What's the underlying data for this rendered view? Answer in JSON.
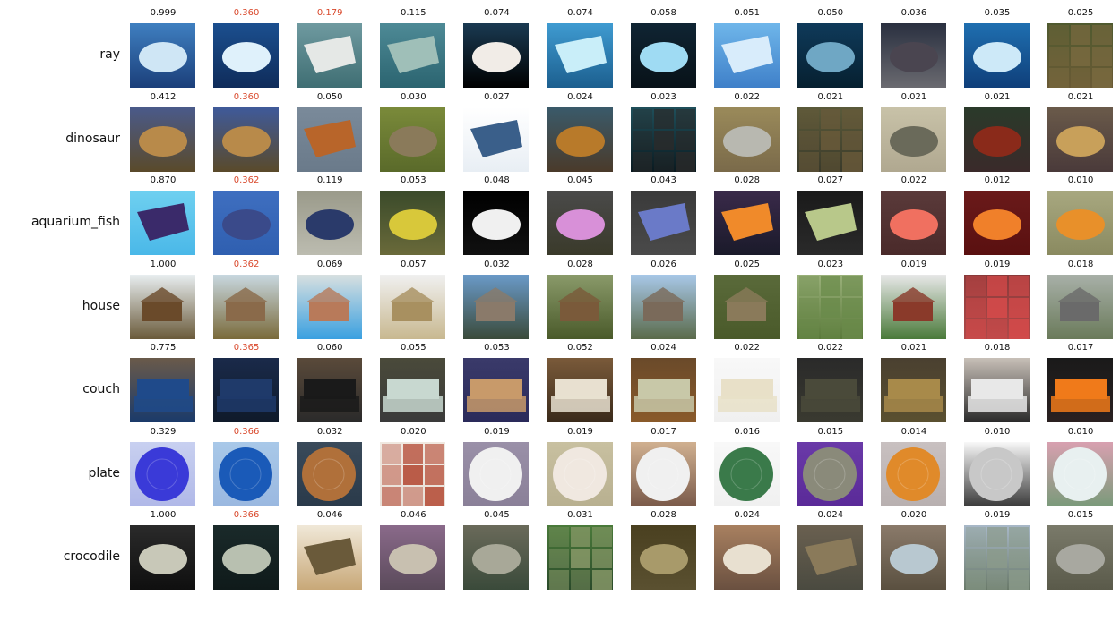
{
  "rows": [
    {
      "label": "ray",
      "scores": [
        "0.999",
        "0.360",
        "0.179",
        "0.115",
        "0.074",
        "0.074",
        "0.058",
        "0.051",
        "0.050",
        "0.036",
        "0.035",
        "0.025"
      ],
      "highlighted": [
        1,
        2
      ],
      "images": [
        {
          "top": "#3f7fc0",
          "bottom": "#1b3f7a",
          "subject": "#cfe6f5",
          "shape": "blob"
        },
        {
          "top": "#1b4f8f",
          "bottom": "#0f2c5a",
          "subject": "#dff1fb",
          "shape": "blob"
        },
        {
          "top": "#6f9aa0",
          "bottom": "#3f6e73",
          "subject": "#e5e8e6",
          "shape": "kite"
        },
        {
          "top": "#4e8a96",
          "bottom": "#2b6470",
          "subject": "#9fbfb8",
          "shape": "kite"
        },
        {
          "top": "#1a3a52",
          "bottom": "#000000",
          "subject": "#f1ece7",
          "shape": "blob"
        },
        {
          "top": "#3f9bd1",
          "bottom": "#1c5f8f",
          "subject": "#c9eef9",
          "shape": "kite"
        },
        {
          "top": "#0f2433",
          "bottom": "#081218",
          "subject": "#9fdbf3",
          "shape": "blob"
        },
        {
          "top": "#6fb6ea",
          "bottom": "#3f80c9",
          "subject": "#d8ecfb",
          "shape": "kite"
        },
        {
          "top": "#0f3a5a",
          "bottom": "#062030",
          "subject": "#6fa7c4",
          "shape": "blob"
        },
        {
          "top": "#2a3040",
          "bottom": "#6a6a70",
          "subject": "#4a4550",
          "shape": "blob"
        },
        {
          "top": "#1f6fb0",
          "bottom": "#0f3f7a",
          "subject": "#cde9f8",
          "shape": "blob"
        },
        {
          "top": "#4f5a2f",
          "bottom": "#6a5a35",
          "subject": "#7a6a40",
          "shape": "noise"
        }
      ]
    },
    {
      "label": "dinosaur",
      "scores": [
        "0.412",
        "0.360",
        "0.050",
        "0.030",
        "0.027",
        "0.024",
        "0.023",
        "0.022",
        "0.021",
        "0.021",
        "0.021",
        "0.021"
      ],
      "highlighted": [
        1
      ],
      "images": [
        {
          "top": "#4a5a8a",
          "bottom": "#5a4a2a",
          "subject": "#b88a4a",
          "shape": "blob"
        },
        {
          "top": "#3f5a9a",
          "bottom": "#5a4a2a",
          "subject": "#b88a4a",
          "shape": "blob"
        },
        {
          "top": "#7a8a9a",
          "bottom": "#6a7a8a",
          "subject": "#b8652a",
          "shape": "kite"
        },
        {
          "top": "#7a8a3a",
          "bottom": "#5a6a2a",
          "subject": "#8a7a5a",
          "shape": "blob"
        },
        {
          "top": "#ffffff",
          "bottom": "#e8eef4",
          "subject": "#3a5f8a",
          "shape": "kite"
        },
        {
          "top": "#3a5a6a",
          "bottom": "#4a3a2a",
          "subject": "#b87a2a",
          "shape": "blob"
        },
        {
          "top": "#1f4f5a",
          "bottom": "#0a1a20",
          "subject": "#2a2a2a",
          "shape": "noise"
        },
        {
          "top": "#9a8a5a",
          "bottom": "#7a6a4a",
          "subject": "#b8b8b0",
          "shape": "blob"
        },
        {
          "top": "#5a5a3a",
          "bottom": "#3a3a2a",
          "subject": "#6a5a3a",
          "shape": "noise"
        },
        {
          "top": "#c8c2a8",
          "bottom": "#b0a890",
          "subject": "#6a6a5a",
          "shape": "blob"
        },
        {
          "top": "#2a3a2a",
          "bottom": "#3a2a2a",
          "subject": "#8a2a1a",
          "shape": "blob"
        },
        {
          "top": "#6a5a4a",
          "bottom": "#4a3a3a",
          "subject": "#c8a05a",
          "shape": "blob"
        }
      ]
    },
    {
      "label": "aquarium_fish",
      "scores": [
        "0.870",
        "0.362",
        "0.119",
        "0.053",
        "0.048",
        "0.045",
        "0.043",
        "0.028",
        "0.027",
        "0.022",
        "0.012",
        "0.010"
      ],
      "highlighted": [
        1
      ],
      "images": [
        {
          "top": "#6fd0f0",
          "bottom": "#4ab8e8",
          "subject": "#3a2a6a",
          "shape": "kite"
        },
        {
          "top": "#3f6fc0",
          "bottom": "#2f5fb0",
          "subject": "#3a4a8a",
          "shape": "blob"
        },
        {
          "top": "#9a9a8a",
          "bottom": "#bcbcb0",
          "subject": "#2a3a6a",
          "shape": "blob"
        },
        {
          "top": "#3a4a2a",
          "bottom": "#6a6a3a",
          "subject": "#d8c83a",
          "shape": "blob"
        },
        {
          "top": "#000000",
          "bottom": "#101010",
          "subject": "#f0f0f0",
          "shape": "blob"
        },
        {
          "top": "#4a4a4a",
          "bottom": "#3a3a2a",
          "subject": "#d890d8",
          "shape": "blob"
        },
        {
          "top": "#3a3a3a",
          "bottom": "#4a4a4a",
          "subject": "#6a7ac8",
          "shape": "kite"
        },
        {
          "top": "#3a2a4a",
          "bottom": "#1a1a2a",
          "subject": "#f08a2a",
          "shape": "kite"
        },
        {
          "top": "#1a1a1a",
          "bottom": "#2a2a2a",
          "subject": "#b8c88a",
          "shape": "kite"
        },
        {
          "top": "#5a3a3a",
          "bottom": "#4a2a2a",
          "subject": "#f07060",
          "shape": "blob"
        },
        {
          "top": "#6a1a1a",
          "bottom": "#5a1010",
          "subject": "#f0802a",
          "shape": "blob"
        },
        {
          "top": "#a8a880",
          "bottom": "#8a8a60",
          "subject": "#e8902a",
          "shape": "blob"
        }
      ]
    },
    {
      "label": "house",
      "scores": [
        "1.000",
        "0.362",
        "0.069",
        "0.057",
        "0.032",
        "0.028",
        "0.026",
        "0.025",
        "0.023",
        "0.019",
        "0.019",
        "0.018"
      ],
      "highlighted": [
        1
      ],
      "images": [
        {
          "top": "#e8eef0",
          "bottom": "#6a5a3a",
          "subject": "#6a4a2a",
          "shape": "house"
        },
        {
          "top": "#c8d8e0",
          "bottom": "#7a6a3a",
          "subject": "#8a6a4a",
          "shape": "house"
        },
        {
          "top": "#d8e0e0",
          "bottom": "#3aa0e0",
          "subject": "#b87a5a",
          "shape": "house"
        },
        {
          "top": "#f0f0f0",
          "bottom": "#c8b890",
          "subject": "#a89060",
          "shape": "house"
        },
        {
          "top": "#6a9ac8",
          "bottom": "#3a4a3a",
          "subject": "#8a7a6a",
          "shape": "house"
        },
        {
          "top": "#8a9a6a",
          "bottom": "#4a5a2a",
          "subject": "#7a5a3a",
          "shape": "house"
        },
        {
          "top": "#a8c8e8",
          "bottom": "#5a6a4a",
          "subject": "#7a6a5a",
          "shape": "house"
        },
        {
          "top": "#5a6a3a",
          "bottom": "#4a5a2a",
          "subject": "#8a7a5a",
          "shape": "house"
        },
        {
          "top": "#9ab07a",
          "bottom": "#5a7a3a",
          "subject": "#6a8a4a",
          "shape": "noise"
        },
        {
          "top": "#e8e8e8",
          "bottom": "#4a7a3a",
          "subject": "#8a3a2a",
          "shape": "house"
        },
        {
          "top": "#8a3a3a",
          "bottom": "#b04a4a",
          "subject": "#d84a4a",
          "shape": "noise"
        },
        {
          "top": "#a8b0a8",
          "bottom": "#6a7a5a",
          "subject": "#6a6a6a",
          "shape": "house"
        }
      ]
    },
    {
      "label": "couch",
      "scores": [
        "0.775",
        "0.365",
        "0.060",
        "0.055",
        "0.053",
        "0.052",
        "0.024",
        "0.022",
        "0.022",
        "0.021",
        "0.018",
        "0.017"
      ],
      "highlighted": [
        1
      ],
      "images": [
        {
          "top": "#6a5a4a",
          "bottom": "#1a3a6a",
          "subject": "#1f4a8a",
          "shape": "couch"
        },
        {
          "top": "#1a2a4a",
          "bottom": "#0f1a2a",
          "subject": "#1f3a6a",
          "shape": "couch"
        },
        {
          "top": "#5a4a3a",
          "bottom": "#2a2a2a",
          "subject": "#1a1a1a",
          "shape": "couch"
        },
        {
          "top": "#4a4a3a",
          "bottom": "#3a3a3a",
          "subject": "#c8d8d0",
          "shape": "couch"
        },
        {
          "top": "#3a3a6a",
          "bottom": "#2a2a5a",
          "subject": "#c89a6a",
          "shape": "couch"
        },
        {
          "top": "#7a5a3a",
          "bottom": "#3a2a1a",
          "subject": "#e8e0d0",
          "shape": "couch"
        },
        {
          "top": "#6a4a2a",
          "bottom": "#8a5a2a",
          "subject": "#c8c8a8",
          "shape": "couch"
        },
        {
          "top": "#f8f8f8",
          "bottom": "#f0f0f0",
          "subject": "#e8e0c8",
          "shape": "couch"
        },
        {
          "top": "#2a2a2a",
          "bottom": "#3a3a30",
          "subject": "#4a4a3a",
          "shape": "couch"
        },
        {
          "top": "#4a4030",
          "bottom": "#5a5030",
          "subject": "#a88a4a",
          "shape": "couch"
        },
        {
          "top": "#c8c0b8",
          "bottom": "#2a2a2a",
          "subject": "#e8e8e8",
          "shape": "couch"
        },
        {
          "top": "#1a1a1a",
          "bottom": "#2a2020",
          "subject": "#f07a1a",
          "shape": "couch"
        }
      ]
    },
    {
      "label": "plate",
      "scores": [
        "0.329",
        "0.366",
        "0.032",
        "0.020",
        "0.019",
        "0.019",
        "0.017",
        "0.016",
        "0.015",
        "0.014",
        "0.010",
        "0.010"
      ],
      "highlighted": [
        1
      ],
      "images": [
        {
          "top": "#c8d0f0",
          "bottom": "#b0b8e8",
          "subject": "#3a3ad8",
          "shape": "plate"
        },
        {
          "top": "#a8c8e8",
          "bottom": "#9ab8e0",
          "subject": "#1a5ab8",
          "shape": "plate"
        },
        {
          "top": "#3a4a5a",
          "bottom": "#2a3a4a",
          "subject": "#b0703a",
          "shape": "plate"
        },
        {
          "top": "#f0e8e0",
          "bottom": "#e8e0d8",
          "subject": "#b0402a",
          "shape": "noise"
        },
        {
          "top": "#9a90a8",
          "bottom": "#8a8098",
          "subject": "#f0f0f0",
          "shape": "plate"
        },
        {
          "top": "#c8c0a0",
          "bottom": "#b8b090",
          "subject": "#f0e8e0",
          "shape": "plate"
        },
        {
          "top": "#d0b090",
          "bottom": "#7a5a4a",
          "subject": "#f0f0f0",
          "shape": "plate"
        },
        {
          "top": "#f8f8f8",
          "bottom": "#f0f0f0",
          "subject": "#3a7a4a",
          "shape": "plate"
        },
        {
          "top": "#6a3aa8",
          "bottom": "#5a2a98",
          "subject": "#8a8a7a",
          "shape": "plate"
        },
        {
          "top": "#c8c0c0",
          "bottom": "#b8b0b0",
          "subject": "#e08a2a",
          "shape": "plate"
        },
        {
          "top": "#f8f8f8",
          "bottom": "#3a3a3a",
          "subject": "#c8c8c8",
          "shape": "plate"
        },
        {
          "top": "#d8a0b0",
          "bottom": "#7a9a7a",
          "subject": "#e8f0f0",
          "shape": "plate"
        }
      ]
    },
    {
      "label": "crocodile",
      "scores": [
        "1.000",
        "0.366",
        "0.046",
        "0.046",
        "0.045",
        "0.031",
        "0.028",
        "0.024",
        "0.024",
        "0.020",
        "0.019",
        "0.015"
      ],
      "highlighted": [
        1
      ],
      "images": [
        {
          "top": "#2a2a2a",
          "bottom": "#0f0f0f",
          "subject": "#c8c8b8",
          "shape": "blob"
        },
        {
          "top": "#1a2a2a",
          "bottom": "#0f1a1a",
          "subject": "#b8c0b0",
          "shape": "blob"
        },
        {
          "top": "#f0e8d8",
          "bottom": "#c8a878",
          "subject": "#6a5a3a",
          "shape": "kite"
        },
        {
          "top": "#8a6a8a",
          "bottom": "#5a4a5a",
          "subject": "#c8c0b0",
          "shape": "blob"
        },
        {
          "top": "#6a6a5a",
          "bottom": "#3a4a3a",
          "subject": "#a8a898",
          "shape": "blob"
        },
        {
          "top": "#4a7a3a",
          "bottom": "#2a4a2a",
          "subject": "#8a9a6a",
          "shape": "noise"
        },
        {
          "top": "#4a4020",
          "bottom": "#5a5030",
          "subject": "#a89a6a",
          "shape": "blob"
        },
        {
          "top": "#a88060",
          "bottom": "#6a5040",
          "subject": "#e8e0d0",
          "shape": "blob"
        },
        {
          "top": "#6a6050",
          "bottom": "#4a4a40",
          "subject": "#8a7a5a",
          "shape": "kite"
        },
        {
          "top": "#8a7a6a",
          "bottom": "#5a5040",
          "subject": "#b8c8d0",
          "shape": "blob"
        },
        {
          "top": "#a8b8c8",
          "bottom": "#6a7a6a",
          "subject": "#8a9a8a",
          "shape": "noise"
        },
        {
          "top": "#7a7a6a",
          "bottom": "#5a5a4a",
          "subject": "#a8a8a0",
          "shape": "blob"
        }
      ]
    }
  ]
}
